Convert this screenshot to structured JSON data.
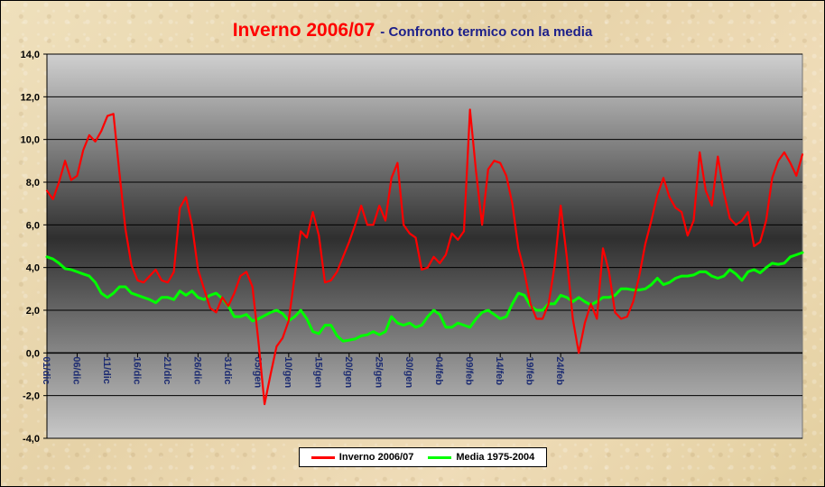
{
  "title": {
    "main": "Inverno 2006/07",
    "sub": "- Confronto termico con la media"
  },
  "chart_data": {
    "type": "line",
    "title": "Inverno 2006/07 - Confronto termico con la media",
    "xlabel": "",
    "ylabel": "",
    "ylim": [
      -4,
      14
    ],
    "y_ticks": [
      "-4,0",
      "-2,0",
      "0,0",
      "2,0",
      "4,0",
      "6,0",
      "8,0",
      "10,0",
      "12,0",
      "14,0"
    ],
    "x_ticks": [
      "01/dic",
      "06/dic",
      "11/dic",
      "16/dic",
      "21/dic",
      "26/dic",
      "31/dic",
      "05/gen",
      "10/gen",
      "15/gen",
      "20/gen",
      "25/gen",
      "30/gen",
      "04/feb",
      "09/feb",
      "14/feb",
      "19/feb",
      "24/feb"
    ],
    "grid": true,
    "legend": "bottom",
    "series": [
      {
        "name": "Inverno 2006/07",
        "color": "#ff0000",
        "values": [
          7.6,
          7.2,
          8.0,
          9.0,
          8.1,
          8.3,
          9.5,
          10.2,
          9.9,
          10.4,
          11.1,
          11.2,
          8.4,
          5.8,
          4.1,
          3.4,
          3.3,
          3.6,
          3.9,
          3.4,
          3.3,
          3.8,
          6.8,
          7.3,
          6.0,
          3.9,
          3.0,
          2.1,
          1.9,
          2.6,
          2.2,
          2.8,
          3.6,
          3.8,
          3.1,
          0.5,
          -2.4,
          -1.0,
          0.3,
          0.7,
          1.5,
          3.6,
          5.7,
          5.4,
          6.6,
          5.5,
          3.3,
          3.4,
          3.8,
          4.5,
          5.2,
          6.0,
          6.9,
          6.0,
          6.0,
          6.9,
          6.2,
          8.2,
          8.9,
          6.0,
          5.6,
          5.4,
          3.9,
          4.0,
          4.5,
          4.2,
          4.6,
          5.6,
          5.3,
          5.7,
          11.4,
          8.5,
          6.0,
          8.6,
          9.0,
          8.9,
          8.3,
          7.0,
          4.9,
          3.8,
          2.3,
          1.6,
          1.6,
          2.3,
          4.1,
          6.9,
          4.5,
          1.6,
          0.0,
          1.4,
          2.3,
          1.6,
          4.9,
          3.8,
          1.9,
          1.6,
          1.7,
          2.4,
          3.6,
          5.1,
          6.2,
          7.4,
          8.2,
          7.3,
          6.8,
          6.6,
          5.5,
          6.2,
          9.4,
          7.6,
          6.9,
          9.2,
          7.5,
          6.3,
          6.0,
          6.2,
          6.6,
          5.0,
          5.2,
          6.2,
          8.2,
          9.0,
          9.4,
          8.9,
          8.3,
          9.3
        ]
      },
      {
        "name": "Media 1975-2004",
        "color": "#00ff00",
        "values": [
          4.5,
          4.4,
          4.2,
          3.95,
          3.9,
          3.8,
          3.7,
          3.6,
          3.3,
          2.8,
          2.6,
          2.8,
          3.1,
          3.1,
          2.8,
          2.7,
          2.6,
          2.5,
          2.35,
          2.6,
          2.6,
          2.5,
          2.9,
          2.7,
          2.9,
          2.6,
          2.5,
          2.7,
          2.8,
          2.55,
          2.2,
          1.7,
          1.7,
          1.8,
          1.5,
          1.6,
          1.75,
          1.9,
          2.0,
          1.85,
          1.5,
          1.7,
          2.0,
          1.6,
          1.0,
          0.9,
          1.3,
          1.3,
          0.8,
          0.55,
          0.6,
          0.65,
          0.8,
          0.85,
          1.0,
          0.85,
          1.0,
          1.7,
          1.4,
          1.3,
          1.4,
          1.2,
          1.3,
          1.7,
          2.0,
          1.8,
          1.2,
          1.2,
          1.4,
          1.3,
          1.2,
          1.6,
          1.9,
          2.0,
          1.8,
          1.6,
          1.7,
          2.3,
          2.8,
          2.7,
          2.2,
          2.0,
          2.0,
          2.3,
          2.3,
          2.7,
          2.6,
          2.4,
          2.6,
          2.4,
          2.25,
          2.4,
          2.6,
          2.6,
          2.7,
          3.0,
          3.0,
          2.95,
          2.95,
          3.0,
          3.2,
          3.5,
          3.2,
          3.3,
          3.5,
          3.6,
          3.6,
          3.65,
          3.8,
          3.8,
          3.6,
          3.5,
          3.6,
          3.9,
          3.7,
          3.4,
          3.8,
          3.9,
          3.75,
          4.0,
          4.2,
          4.15,
          4.2,
          4.5,
          4.6,
          4.7
        ]
      }
    ]
  }
}
